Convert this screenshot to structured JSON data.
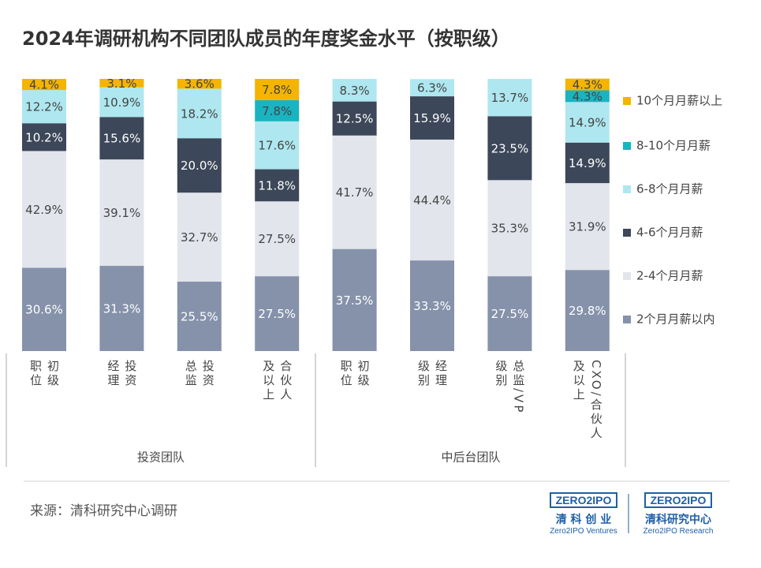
{
  "chart_data": {
    "type": "stacked_bar",
    "title": "2024年调研机构不同团队成员的年度奖金水平（按职级）",
    "categories": [
      "初级职位",
      "投资经理",
      "投资总监",
      "合伙人及以上",
      "初级职位",
      "经理级别",
      "总监/VP级别",
      "CXO/合伙人及以上"
    ],
    "groups": [
      "投资团队",
      "中后台团队"
    ],
    "ylim": [
      0,
      100
    ],
    "series": [
      {
        "name": "2个月月薪以内",
        "color": "#8592aa",
        "values": [
          30.6,
          31.3,
          25.5,
          27.5,
          37.5,
          33.3,
          27.5,
          29.8
        ],
        "value_labels": [
          "30.6%",
          "31.3%",
          "25.5%",
          "27.5%",
          "37.5%",
          "33.3%",
          "27.5%",
          "29.8%"
        ]
      },
      {
        "name": "2-4个月月薪",
        "color": "#e2e5ec",
        "values": [
          42.9,
          39.1,
          32.7,
          27.5,
          41.7,
          44.4,
          35.3,
          31.9
        ],
        "value_labels": [
          "42.9%",
          "39.1%",
          "32.7%",
          "27.5%",
          "41.7%",
          "44.4%",
          "35.3%",
          "31.9%"
        ]
      },
      {
        "name": "4-6个月月薪",
        "color": "#3c4759",
        "values": [
          10.2,
          15.6,
          20.0,
          11.8,
          12.5,
          15.9,
          23.5,
          14.9
        ],
        "value_labels": [
          "10.2%",
          "15.6%",
          "20.0%",
          "11.8%",
          "12.5%",
          "15.9%",
          "23.5%",
          "14.9%"
        ]
      },
      {
        "name": "6-8个月月薪",
        "color": "#aee7ef",
        "values": [
          12.2,
          10.9,
          18.2,
          17.6,
          8.3,
          6.3,
          13.7,
          14.9
        ],
        "value_labels": [
          "12.2%",
          "10.9%",
          "18.2%",
          "17.6%",
          "8.3%",
          "6.3%",
          "13.7%",
          "14.9%"
        ]
      },
      {
        "name": "8-10个月月薪",
        "color": "#1ab3c1",
        "values": [
          null,
          null,
          null,
          7.8,
          null,
          null,
          null,
          4.3
        ],
        "value_labels": [
          null,
          null,
          null,
          "7.8%",
          null,
          null,
          null,
          "4.3%"
        ]
      },
      {
        "name": "10个月月薪以上",
        "color": "#f4b400",
        "values": [
          4.1,
          3.1,
          3.6,
          7.8,
          null,
          null,
          null,
          4.3
        ],
        "value_labels": [
          "4.1%",
          "3.1%",
          "3.6%",
          "7.8%",
          null,
          null,
          null,
          "4.3%"
        ]
      }
    ]
  },
  "footer": {
    "source": "来源：清科研究中心调研",
    "logos": [
      {
        "brand": "ZERO2IPO",
        "name": "清 科 创 业",
        "english": "Zero2IPO Ventures"
      },
      {
        "brand": "ZERO2IPO",
        "name": "清科研究中心",
        "english": "Zero2IPO Research"
      }
    ]
  }
}
